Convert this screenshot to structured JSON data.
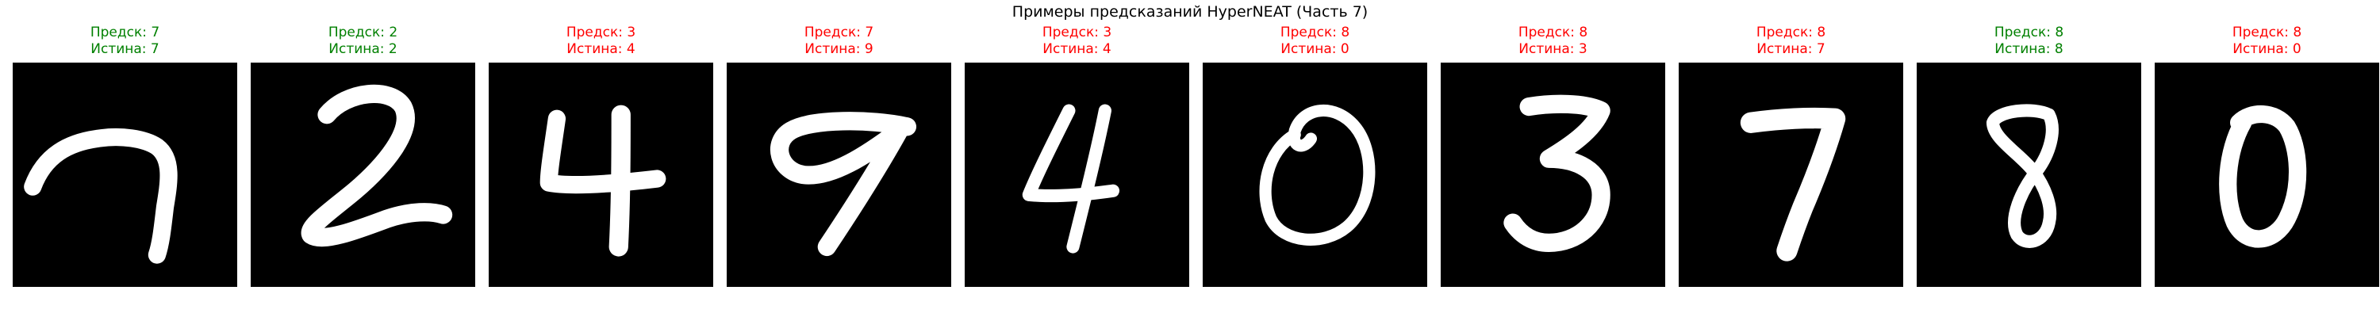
{
  "title": "Примеры предсказаний HyperNEAT (Часть 7)",
  "colors": {
    "correct": "#008000",
    "incorrect": "#ff0000",
    "title": "#000000",
    "image_background": "#000000",
    "digit_stroke": "#ffffff"
  },
  "panels": [
    {
      "pred_label": "Предск: 7",
      "true_label": "Истина: 7",
      "correct": true,
      "digit": "7"
    },
    {
      "pred_label": "Предск: 2",
      "true_label": "Истина: 2",
      "correct": true,
      "digit": "2"
    },
    {
      "pred_label": "Предск: 3",
      "true_label": "Истина: 4",
      "correct": false,
      "digit": "4"
    },
    {
      "pred_label": "Предск: 7",
      "true_label": "Истина: 9",
      "correct": false,
      "digit": "9"
    },
    {
      "pred_label": "Предск: 3",
      "true_label": "Истина: 4",
      "correct": false,
      "digit": "4"
    },
    {
      "pred_label": "Предск: 8",
      "true_label": "Истина: 0",
      "correct": false,
      "digit": "0"
    },
    {
      "pred_label": "Предск: 8",
      "true_label": "Истина: 3",
      "correct": false,
      "digit": "3"
    },
    {
      "pred_label": "Предск: 8",
      "true_label": "Истина: 7",
      "correct": false,
      "digit": "7"
    },
    {
      "pred_label": "Предск: 8",
      "true_label": "Истина: 8",
      "correct": true,
      "digit": "8"
    },
    {
      "pred_label": "Предск: 8",
      "true_label": "Истина: 0",
      "correct": false,
      "digit": "0"
    }
  ]
}
